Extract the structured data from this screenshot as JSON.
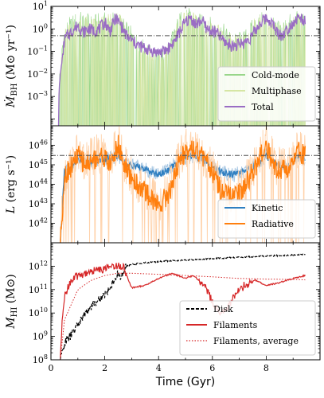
{
  "colors": {
    "cold": "#98d68a",
    "multiphase": "#d6e6a4",
    "total": "#9a6dc4",
    "kinetic": "#2f7fc1",
    "radiative": "#ff7f0e",
    "radiative_light": "#ffd2aa",
    "kinetic_light": "#a9c8e3",
    "disk": "#000000",
    "filaments": "#d62728",
    "reference": "#555555"
  },
  "chart_data": [
    {
      "type": "line",
      "panel": "top",
      "ylabel": "Ṁ_BH (M⊙ yr⁻¹)",
      "ylabel_parts": {
        "main": "Ṁ",
        "sub": "BH",
        "unit": " (M⊙ yr⁻¹)"
      },
      "yscale": "log",
      "ylim": [
        5e-05,
        10
      ],
      "yticks": [
        {
          "value": 10,
          "base": "10",
          "exp": "1"
        },
        {
          "value": 1,
          "base": "10",
          "exp": "0"
        },
        {
          "value": 0.1,
          "base": "10",
          "exp": "−1"
        },
        {
          "value": 0.01,
          "base": "10",
          "exp": "−2"
        },
        {
          "value": 0.001,
          "base": "10",
          "exp": "−3"
        }
      ],
      "xlim": [
        0,
        10
      ],
      "reference_line": {
        "y": 0.5,
        "style": "dashdot"
      },
      "legend": {
        "position": "lower-right",
        "entries": [
          "Cold-mode",
          "Multiphase",
          "Total"
        ]
      },
      "series": [
        {
          "name": "Cold-mode",
          "style": "fill",
          "x": [
            0.3,
            0.5,
            1.0,
            1.5,
            2.0,
            2.5,
            2.8,
            3.2,
            3.6,
            4.0,
            4.4,
            4.8,
            5.2,
            5.6,
            6.0,
            6.4,
            6.8,
            7.2,
            7.6,
            8.0,
            8.4,
            8.8,
            9.2,
            9.45
          ],
          "y": [
            0.005,
            1.0,
            3.0,
            2.0,
            2.5,
            3.0,
            1.0,
            0.3,
            0.1,
            0.05,
            0.2,
            3.0,
            4.0,
            2.0,
            1.5,
            0.8,
            0.3,
            0.4,
            2.0,
            3.0,
            1.0,
            2.0,
            3.0,
            2.0
          ]
        },
        {
          "name": "Multiphase",
          "style": "fill",
          "x": [
            0.3,
            0.5,
            1.0,
            1.5,
            2.0,
            2.5,
            2.8,
            3.2,
            3.6,
            4.0,
            4.4,
            4.8,
            5.2,
            5.6,
            6.0,
            6.4,
            6.8,
            7.2,
            7.6,
            8.0,
            8.4,
            8.8,
            9.2,
            9.45
          ],
          "y": [
            0.003,
            0.5,
            2.0,
            1.5,
            2.0,
            2.5,
            0.8,
            0.2,
            0.08,
            0.04,
            0.1,
            2.0,
            3.0,
            1.5,
            1.0,
            0.5,
            0.2,
            0.3,
            1.5,
            2.5,
            0.8,
            1.5,
            2.5,
            1.5
          ]
        },
        {
          "name": "Total",
          "style": "line",
          "x": [
            0.28,
            0.3,
            0.35,
            0.4,
            0.5,
            0.6,
            0.8,
            1.0,
            1.2,
            1.4,
            1.6,
            1.8,
            2.0,
            2.2,
            2.4,
            2.6,
            2.8,
            3.0,
            3.2,
            3.4,
            3.6,
            3.8,
            4.0,
            4.2,
            4.4,
            4.6,
            4.8,
            5.0,
            5.2,
            5.4,
            5.6,
            5.8,
            6.0,
            6.2,
            6.4,
            6.6,
            6.8,
            7.0,
            7.2,
            7.4,
            7.6,
            7.8,
            8.0,
            8.2,
            8.4,
            8.6,
            8.8,
            9.0,
            9.2,
            9.4,
            9.45
          ],
          "y": [
            5e-05,
            0.002,
            0.01,
            0.03,
            0.3,
            0.5,
            0.8,
            1.5,
            0.7,
            1.0,
            0.8,
            1.0,
            2.0,
            0.8,
            3.0,
            1.5,
            0.5,
            0.3,
            0.2,
            0.15,
            0.12,
            0.1,
            0.09,
            0.1,
            0.15,
            0.3,
            0.8,
            2.0,
            3.0,
            1.5,
            2.5,
            1.0,
            0.8,
            0.6,
            0.3,
            0.2,
            0.18,
            0.2,
            0.25,
            0.4,
            0.8,
            2.0,
            3.0,
            2.0,
            0.7,
            0.5,
            1.0,
            2.0,
            3.0,
            2.5,
            2.0
          ]
        }
      ]
    },
    {
      "type": "line",
      "panel": "middle",
      "ylabel": "L (erg s⁻¹)",
      "ylabel_parts": {
        "main": "L",
        "unit": " (erg s⁻¹)"
      },
      "yscale": "log",
      "ylim": [
        1e+41,
        1e+47
      ],
      "yticks": [
        {
          "value": 1e+46,
          "base": "10",
          "exp": "46"
        },
        {
          "value": 1e+45,
          "base": "10",
          "exp": "45"
        },
        {
          "value": 1e+44,
          "base": "10",
          "exp": "44"
        },
        {
          "value": 1e+43,
          "base": "10",
          "exp": "43"
        },
        {
          "value": 1e+42,
          "base": "10",
          "exp": "42"
        }
      ],
      "xlim": [
        0,
        10
      ],
      "reference_line": {
        "y": 3e+45,
        "style": "dashdot"
      },
      "legend": {
        "position": "lower-right",
        "entries": [
          "Kinetic",
          "Radiative"
        ]
      },
      "series": [
        {
          "name": "Kinetic",
          "x": [
            0.35,
            0.5,
            0.8,
            1.0,
            1.3,
            1.6,
            1.9,
            2.2,
            2.5,
            2.8,
            3.2,
            3.6,
            4.0,
            4.4,
            4.8,
            5.2,
            5.6,
            6.0,
            6.4,
            6.8,
            7.2,
            7.6,
            8.0,
            8.4,
            8.8,
            9.2,
            9.45
          ],
          "y": [
            1e+41,
            5e+44,
            8e+44,
            2e+45,
            1.5e+45,
            1.5e+45,
            2e+45,
            2e+45,
            3e+45,
            1e+45,
            8e+44,
            5e+44,
            3e+44,
            6e+44,
            2e+45,
            3e+45,
            2e+45,
            8e+44,
            4e+44,
            3e+44,
            5e+44,
            1e+45,
            3e+45,
            1e+45,
            1e+45,
            3e+45,
            2e+45
          ]
        },
        {
          "name": "Radiative",
          "x": [
            0.35,
            0.5,
            0.8,
            1.0,
            1.3,
            1.6,
            1.9,
            2.2,
            2.5,
            2.8,
            3.2,
            3.6,
            4.0,
            4.4,
            4.8,
            5.2,
            5.6,
            6.0,
            6.4,
            6.8,
            7.2,
            7.6,
            8.0,
            8.4,
            8.8,
            9.2,
            9.45
          ],
          "y": [
            1e+41,
            3e+44,
            1e+45,
            3e+45,
            1e+45,
            2e+45,
            3e+45,
            1e+45,
            1e+46,
            5e+44,
            1e+44,
            3e+43,
            8e+42,
            4e+43,
            2e+45,
            1e+46,
            3e+45,
            4e+44,
            3e+43,
            2e+43,
            8e+43,
            8e+44,
            1e+46,
            5e+44,
            8e+44,
            5e+45,
            3e+45
          ]
        }
      ]
    },
    {
      "type": "line",
      "panel": "bottom",
      "ylabel": "M_HI (M⊙)",
      "ylabel_parts": {
        "main": "M",
        "sub": "HI",
        "unit": " (M⊙)"
      },
      "xlabel": "Time (Gyr)",
      "yscale": "log",
      "ylim": [
        100000000.0,
        10000000000000.0
      ],
      "yticks": [
        {
          "value": 1000000000000.0,
          "base": "10",
          "exp": "12"
        },
        {
          "value": 100000000000.0,
          "base": "10",
          "exp": "11"
        },
        {
          "value": 10000000000.0,
          "base": "10",
          "exp": "10"
        },
        {
          "value": 1000000000.0,
          "base": "10",
          "exp": "9"
        },
        {
          "value": 100000000.0,
          "base": "10",
          "exp": "8"
        }
      ],
      "xlim": [
        0,
        10
      ],
      "xticks": [
        0,
        2,
        4,
        6,
        8
      ],
      "legend": {
        "position": "lower-right",
        "entries": [
          "Disk",
          "Filaments",
          "Filaments, average"
        ]
      },
      "series": [
        {
          "name": "Disk",
          "style": "dashed",
          "x": [
            0.35,
            0.5,
            0.7,
            0.9,
            1.1,
            1.3,
            1.5,
            1.7,
            1.9,
            2.1,
            2.3,
            2.5,
            2.6,
            2.8,
            3.0,
            3.5,
            4.0,
            5.0,
            6.0,
            7.0,
            8.0,
            9.0,
            9.45
          ],
          "y": [
            100000000.0,
            500000000.0,
            1000000000.0,
            2000000000.0,
            5000000000.0,
            10000000000.0,
            20000000000.0,
            30000000000.0,
            50000000000.0,
            80000000000.0,
            200000000000.0,
            500000000000.0,
            300000000000.0,
            1000000000000.0,
            1200000000000.0,
            1400000000000.0,
            1600000000000.0,
            1800000000000.0,
            2100000000000.0,
            2400000000000.0,
            2700000000000.0,
            3000000000000.0,
            3100000000000.0
          ]
        },
        {
          "name": "Filaments",
          "style": "solid",
          "x": [
            0.35,
            0.4,
            0.5,
            0.7,
            1.0,
            1.5,
            2.0,
            2.3,
            2.5,
            2.7,
            3.0,
            3.5,
            4.0,
            4.5,
            5.0,
            5.3,
            5.7,
            6.0,
            6.3,
            6.6,
            6.9,
            7.2,
            7.6,
            8.0,
            8.5,
            9.0,
            9.45
          ],
          "y": [
            100000000.0,
            2000000000.0,
            50000000000.0,
            200000000000.0,
            400000000000.0,
            600000000000.0,
            800000000000.0,
            1000000000000.0,
            1100000000000.0,
            900000000000.0,
            120000000000.0,
            150000000000.0,
            300000000000.0,
            500000000000.0,
            300000000000.0,
            400000000000.0,
            150000000000.0,
            30000000000.0,
            10000000000.0,
            20000000000.0,
            80000000000.0,
            150000000000.0,
            250000000000.0,
            150000000000.0,
            200000000000.0,
            300000000000.0,
            400000000000.0
          ]
        },
        {
          "name": "Filaments, average",
          "style": "dotted",
          "x": [
            0.35,
            0.5,
            1.0,
            1.5,
            2.0,
            2.5,
            3.0,
            4.0,
            5.0,
            6.0,
            7.0,
            8.0,
            9.0,
            9.45
          ],
          "y": [
            100000000.0,
            5000000000.0,
            100000000000.0,
            250000000000.0,
            400000000000.0,
            500000000000.0,
            500000000000.0,
            450000000000.0,
            400000000000.0,
            350000000000.0,
            300000000000.0,
            280000000000.0,
            270000000000.0,
            260000000000.0
          ]
        }
      ]
    }
  ]
}
